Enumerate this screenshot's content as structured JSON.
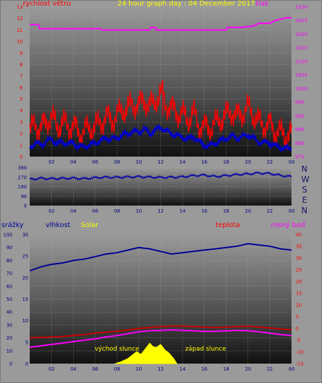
{
  "header": {
    "wind_speed_label": "rychlost větru",
    "title": "24 hour graph day : 04 December 2017",
    "pressure_label": "tlak",
    "rain_label": "srážky",
    "humidity_label": "vlhkost",
    "solar_label": "Solar",
    "temperature_label": "teplota",
    "dewpoint_label": "rosný bod"
  },
  "compass": [
    "N",
    "W",
    "S",
    "E",
    "N"
  ],
  "annotations": {
    "sunrise": "východ slunce",
    "sunset": "západ slunce"
  },
  "colors": {
    "wind_speed": "#ff0000",
    "wind_avg": "#0000cc",
    "pressure": "#ff00ff",
    "wind_dir": "#0000aa",
    "humidity": "#000099",
    "temperature": "#cc0000",
    "dewpoint": "#ff00ff",
    "solar": "#ffff00",
    "title": "#ffff00"
  },
  "chart_data": [
    {
      "type": "line",
      "name": "wind_pressure",
      "x_ticks": [
        "02",
        "04",
        "06",
        "08",
        "10",
        "12",
        "14",
        "16",
        "18",
        "20",
        "22",
        "00"
      ],
      "y_left_ticks": [
        0,
        1,
        2,
        3,
        4,
        5,
        6,
        7,
        8,
        9,
        10,
        11,
        12,
        13
      ],
      "y_left_range": [
        0,
        13
      ],
      "y_right_ticks": [
        975,
        980,
        985,
        990,
        995,
        1000,
        1005,
        1010,
        1015,
        1020,
        1025,
        1030
      ],
      "y_right_range": [
        975,
        1030
      ],
      "x_range": [
        0,
        24
      ],
      "series": [
        {
          "name": "rychlost větru",
          "axis": "left",
          "x": [
            0,
            0.5,
            1,
            1.5,
            2,
            2.5,
            3,
            3.5,
            4,
            4.5,
            5,
            5.5,
            6,
            6.5,
            7,
            7.5,
            8,
            8.5,
            9,
            9.5,
            10,
            10.5,
            11,
            11.5,
            12,
            12.5,
            13,
            13.5,
            14,
            14.5,
            15,
            15.5,
            16,
            16.5,
            17,
            17.5,
            18,
            18.5,
            19,
            19.5,
            20,
            20.5,
            21,
            21.5,
            22,
            22.5,
            23,
            23.5,
            24
          ],
          "values": [
            2.2,
            2.8,
            2.5,
            3.0,
            3.5,
            2.5,
            3.0,
            2.6,
            2.8,
            2.0,
            2.2,
            2.4,
            2.6,
            3.0,
            3.5,
            3.2,
            3.5,
            4.0,
            4.2,
            4.6,
            4.5,
            5.0,
            4.2,
            4.8,
            5.5,
            4.6,
            4.2,
            3.8,
            3.6,
            3.2,
            3.8,
            2.8,
            2.6,
            2.5,
            2.8,
            3.2,
            3.6,
            4.0,
            3.5,
            3.8,
            4.2,
            3.6,
            3.0,
            2.8,
            2.8,
            2.2,
            2.0,
            1.8,
            2.0
          ]
        },
        {
          "name": "wind_avg",
          "axis": "left",
          "x": [
            0,
            0.5,
            1,
            1.5,
            2,
            2.5,
            3,
            3.5,
            4,
            4.5,
            5,
            5.5,
            6,
            6.5,
            7,
            7.5,
            8,
            8.5,
            9,
            9.5,
            10,
            10.5,
            11,
            11.5,
            12,
            12.5,
            13,
            13.5,
            14,
            14.5,
            15,
            15.5,
            16,
            16.5,
            17,
            17.5,
            18,
            18.5,
            19,
            19.5,
            20,
            20.5,
            21,
            21.5,
            22,
            22.5,
            23,
            23.5,
            24
          ],
          "values": [
            0.8,
            1.2,
            1.0,
            1.3,
            1.5,
            1.1,
            1.3,
            1.1,
            1.2,
            0.8,
            0.9,
            1.0,
            1.2,
            1.4,
            1.6,
            1.5,
            1.6,
            1.9,
            2.0,
            2.2,
            2.1,
            2.4,
            2.0,
            2.3,
            2.6,
            2.2,
            2.0,
            1.8,
            1.7,
            1.5,
            1.8,
            1.3,
            1.0,
            0.9,
            1.2,
            1.4,
            1.6,
            1.8,
            1.6,
            1.7,
            1.9,
            1.6,
            1.3,
            1.2,
            1.2,
            0.9,
            0.8,
            0.7,
            0.8
          ]
        },
        {
          "name": "tlak",
          "axis": "right",
          "x": [
            0,
            0.8,
            0.9,
            6.5,
            6.6,
            11.0,
            11.1,
            11.5,
            11.6,
            18.0,
            18.1,
            19.5,
            20.5,
            21.0,
            22.0,
            22.5,
            23.5,
            24
          ],
          "values": [
            1023.5,
            1023.5,
            1022,
            1022,
            1021.5,
            1021.5,
            1022.5,
            1022.5,
            1021.5,
            1021.5,
            1022.5,
            1022.5,
            1023,
            1024,
            1024,
            1025,
            1026,
            1026
          ]
        }
      ]
    },
    {
      "type": "scatter",
      "name": "wind_direction",
      "x_ticks": [
        "02",
        "04",
        "06",
        "08",
        "10",
        "12",
        "14",
        "16",
        "18",
        "20",
        "22",
        "00"
      ],
      "y_ticks": [
        0,
        90,
        180,
        270,
        360
      ],
      "y_range": [
        0,
        360
      ],
      "x_range": [
        0,
        24
      ],
      "series": [
        {
          "name": "wind_dir",
          "x": [
            0,
            1,
            2,
            3,
            4,
            5,
            6,
            7,
            8,
            9,
            10,
            11,
            12,
            13,
            14,
            15,
            16,
            17,
            18,
            19,
            20,
            21,
            22,
            23,
            24
          ],
          "values": [
            250,
            260,
            255,
            258,
            262,
            255,
            265,
            270,
            268,
            272,
            275,
            270,
            268,
            270,
            272,
            285,
            290,
            275,
            285,
            295,
            300,
            310,
            305,
            285,
            275
          ]
        }
      ]
    },
    {
      "type": "line",
      "name": "humidity_temp",
      "x_ticks": [
        "02",
        "04",
        "06",
        "08",
        "10",
        "12",
        "14",
        "16",
        "18",
        "20",
        "22",
        "00"
      ],
      "y_left_ticks": [
        0,
        10,
        20,
        30,
        40,
        50,
        60,
        70,
        80,
        90,
        100
      ],
      "y_left_range": [
        0,
        100
      ],
      "y_mid_ticks": [
        0,
        5,
        10,
        15,
        20,
        25,
        30
      ],
      "y_mid_range": [
        0,
        30
      ],
      "y_right_ticks": [
        40,
        35,
        30,
        25,
        20,
        15,
        10,
        5,
        0,
        -5,
        -10,
        -15
      ],
      "y_right_range": [
        -15,
        40
      ],
      "x_range": [
        0,
        24
      ],
      "series": [
        {
          "name": "vlhkost",
          "axis": "left",
          "x": [
            0,
            1,
            2,
            3,
            4,
            5,
            6,
            7,
            8,
            9,
            10,
            11,
            12,
            13,
            14,
            15,
            16,
            17,
            18,
            19,
            20,
            21,
            22,
            23,
            24
          ],
          "values": [
            72,
            75,
            77,
            78,
            80,
            81,
            83,
            85,
            86,
            88,
            90,
            89,
            87,
            85,
            86,
            87,
            88,
            89,
            90,
            91,
            93,
            92,
            91,
            89,
            88
          ]
        },
        {
          "name": "teplota",
          "axis": "right",
          "x": [
            0,
            1,
            2,
            3,
            4,
            5,
            6,
            7,
            8,
            9,
            10,
            11,
            12,
            13,
            14,
            15,
            16,
            17,
            18,
            19,
            20,
            21,
            22,
            23,
            24
          ],
          "values": [
            -4,
            -3.8,
            -3.6,
            -3.4,
            -3,
            -2.6,
            -2,
            -1.6,
            -1.2,
            -0.6,
            0,
            0.4,
            0.8,
            1,
            1,
            0.8,
            0.6,
            0.4,
            0.6,
            0.8,
            1,
            0.6,
            0.2,
            -0.2,
            -0.6
          ]
        },
        {
          "name": "rosný bod",
          "axis": "right",
          "x": [
            0,
            1,
            2,
            3,
            4,
            5,
            6,
            7,
            8,
            9,
            10,
            11,
            12,
            13,
            14,
            15,
            16,
            17,
            18,
            19,
            20,
            21,
            22,
            23,
            24
          ],
          "values": [
            -8,
            -7.4,
            -6.8,
            -6.2,
            -5.6,
            -5,
            -4.4,
            -3.6,
            -3,
            -2.2,
            -1.4,
            -1,
            -0.8,
            -0.6,
            -0.8,
            -1,
            -1.2,
            -1.2,
            -1,
            -0.8,
            -1,
            -1.4,
            -2,
            -2.6,
            -3
          ]
        },
        {
          "name": "Solar",
          "axis": "mid",
          "x": [
            7.8,
            8.4,
            9.0,
            9.4,
            9.8,
            10.2,
            10.6,
            11.0,
            11.3,
            11.6,
            12.0,
            12.4,
            12.8,
            13.2,
            13.5
          ],
          "values": [
            0,
            0.5,
            1.2,
            2.0,
            2.8,
            2.2,
            3.5,
            4.8,
            4.0,
            3.8,
            4.5,
            3.2,
            2.4,
            1.2,
            0
          ]
        }
      ]
    }
  ]
}
